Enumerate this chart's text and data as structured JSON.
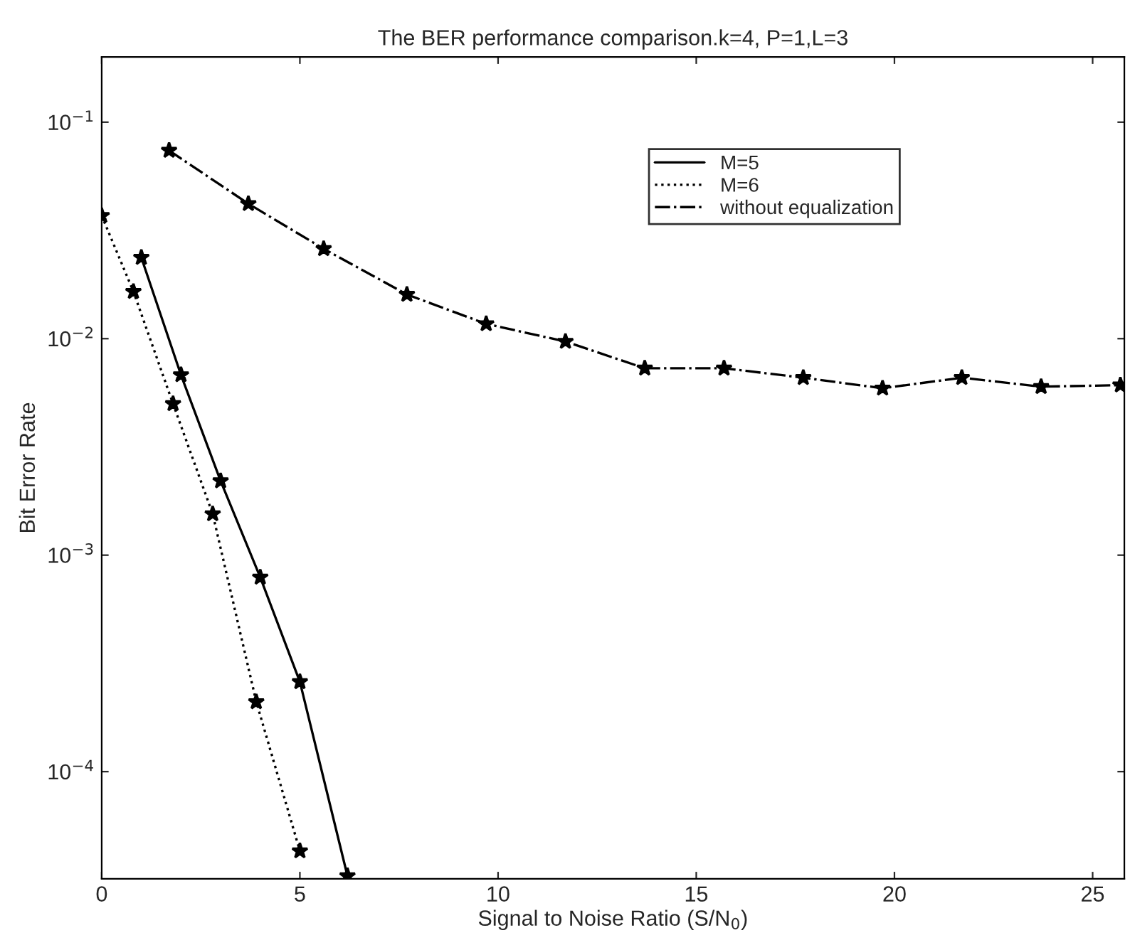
{
  "chart_data": {
    "type": "line",
    "title": "The BER performance comparison.k=4, P=1,L=3",
    "xlabel": "Signal to Noise Ratio (S/N$_{0}$)",
    "ylabel": "Bit Error Rate",
    "log": "y",
    "xlim": [
      0,
      25.8
    ],
    "xticks": [
      0,
      5,
      10,
      15,
      20,
      25
    ],
    "ylim": [
      3.2e-05,
      0.2
    ],
    "yticks": [
      {
        "value": 0.1,
        "label": "10$^{−1}$"
      },
      {
        "value": 0.01,
        "label": "10$^{−2}$"
      },
      {
        "value": 0.001,
        "label": "10$^{−3}$"
      },
      {
        "value": 0.0001,
        "label": "10$^{−4}$"
      }
    ],
    "grid": false,
    "legend": "top right",
    "marker": "star",
    "series": [
      {
        "name": "M=5",
        "color": "#000000",
        "line_style": "solid",
        "x": [
          1,
          2,
          3,
          4,
          5,
          6.2
        ],
        "values": [
          0.0237,
          0.0068,
          0.0022,
          0.00079,
          0.00026,
          3.3e-05
        ]
      },
      {
        "name": "M=6",
        "color": "#000000",
        "line_style": "dotted",
        "x": [
          0,
          0.8,
          1.8,
          2.8,
          3.9,
          5
        ],
        "values": [
          0.037,
          0.0165,
          0.005,
          0.00155,
          0.00021,
          4.3e-05
        ]
      },
      {
        "name": "without equalization",
        "color": "#000000",
        "line_style": "dashdot",
        "x": [
          1.7,
          3.7,
          5.6,
          7.7,
          9.7,
          11.7,
          13.7,
          15.7,
          17.7,
          19.7,
          21.7,
          23.7,
          25.7
        ],
        "values": [
          0.074,
          0.042,
          0.026,
          0.016,
          0.0117,
          0.0097,
          0.0073,
          0.0073,
          0.0066,
          0.0059,
          0.0066,
          0.006,
          0.0061
        ]
      }
    ]
  }
}
